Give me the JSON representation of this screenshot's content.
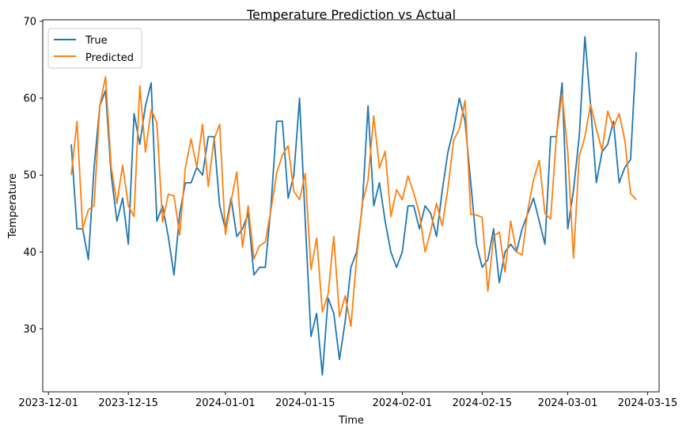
{
  "chart_data": {
    "type": "line",
    "title": "Temperature Prediction vs Actual",
    "xlabel": "Time",
    "ylabel": "Temperature",
    "xlim": [
      "2023-11-30",
      "2024-03-17"
    ],
    "ylim": [
      21.8,
      70.2
    ],
    "x_ticks": [
      "2023-12-01",
      "2023-12-15",
      "2024-01-01",
      "2024-01-15",
      "2024-02-01",
      "2024-02-15",
      "2024-03-01",
      "2024-03-15"
    ],
    "y_ticks": [
      30,
      40,
      50,
      60,
      70
    ],
    "grid": false,
    "legend": "top-left",
    "x_start": "2023-12-05",
    "series": [
      {
        "name": "True",
        "color": "#1f77b4",
        "values": [
          54,
          43,
          43,
          39,
          51,
          59,
          61,
          50,
          44,
          47,
          41,
          58,
          54,
          59,
          62,
          44,
          46,
          42,
          37,
          45,
          49,
          49,
          51,
          50,
          55,
          55,
          46,
          43,
          47,
          42,
          43,
          45,
          37,
          38,
          38,
          46,
          57,
          57,
          47,
          50,
          60,
          44,
          29,
          32,
          24,
          34,
          32,
          26,
          31,
          38,
          40,
          46,
          59,
          46,
          49,
          44,
          40,
          38,
          40,
          46,
          46,
          43,
          46,
          45,
          42,
          48,
          53,
          56,
          60,
          57,
          49,
          41,
          38,
          39,
          43,
          36,
          40,
          41,
          40,
          43,
          45,
          47,
          44,
          41,
          55,
          55,
          62,
          43,
          48,
          55,
          68,
          59,
          49,
          53,
          54,
          57,
          49,
          51,
          52,
          66
        ]
      },
      {
        "name": "Predicted",
        "color": "#ff7f0e",
        "values": [
          50,
          57,
          43,
          45.5,
          46,
          59,
          62.8,
          51,
          46.3,
          51.3,
          46,
          44.6,
          61.6,
          53,
          58.5,
          56.8,
          43.9,
          47.5,
          47.3,
          42.2,
          51,
          54.7,
          51,
          56.6,
          48.5,
          54.6,
          56.6,
          42.3,
          46.6,
          50.4,
          40.6,
          46,
          39.1,
          40.8,
          41.3,
          45.5,
          50.3,
          52.6,
          53.8,
          47.9,
          46.8,
          50.2,
          37.7,
          41.8,
          32.2,
          34.5,
          42,
          31.6,
          34.3,
          30.3,
          39.2,
          46.3,
          49.3,
          57.7,
          50.9,
          53.1,
          44.6,
          48.1,
          46.8,
          49.9,
          47.7,
          45,
          40,
          42.8,
          46.3,
          43.4,
          48.3,
          54.5,
          56,
          59.7,
          44.9,
          44.8,
          44.5,
          34.9,
          42,
          42.6,
          37.4,
          44,
          40,
          39.6,
          45.5,
          49.4,
          51.9,
          45,
          44.3,
          55,
          60.6,
          53,
          39.2,
          52.4,
          55,
          59.2,
          56,
          53.2,
          58.3,
          56.2,
          58,
          54.5,
          47.6,
          46.8
        ]
      }
    ]
  }
}
